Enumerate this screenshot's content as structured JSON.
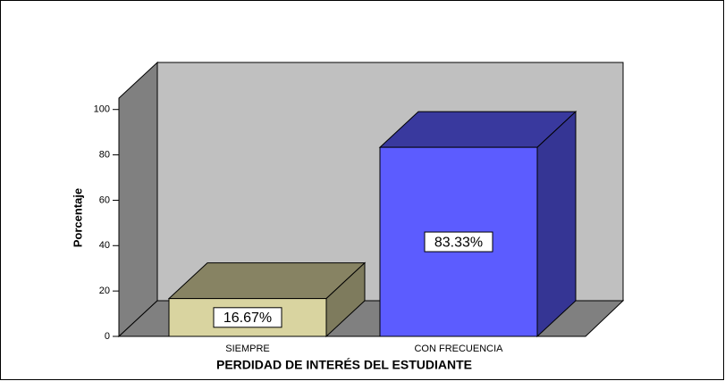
{
  "chart_data": {
    "type": "bar3d",
    "x_label": "PERDIDAD DE INTERÉS DEL ESTUDIANTE",
    "y_label": "Porcentaje",
    "categories": [
      "SIEMPRE",
      "CON FRECUENCIA"
    ],
    "values": [
      16.67,
      83.33
    ],
    "value_labels": [
      "16.67%",
      "83.33%"
    ],
    "colors": [
      "#d9d4a0",
      "#5c5cff"
    ],
    "ylim": [
      0,
      105
    ],
    "yticks": [
      0,
      20,
      40,
      60,
      80,
      100
    ]
  }
}
